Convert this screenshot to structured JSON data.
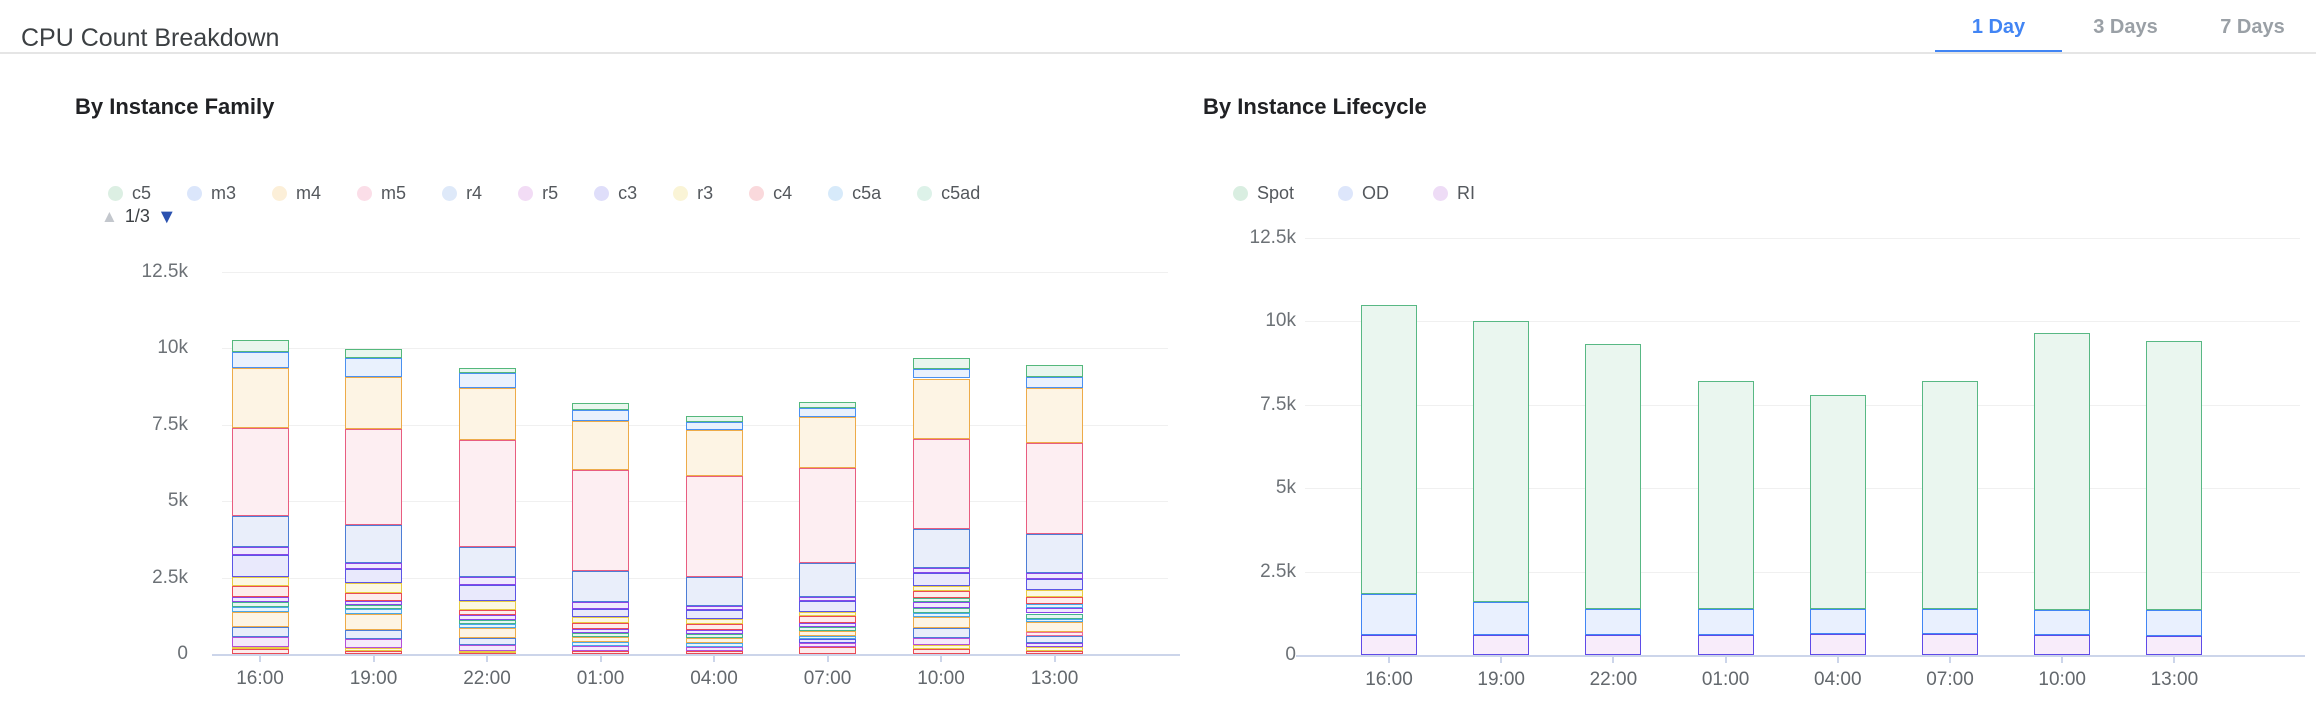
{
  "header": {
    "title": "CPU Count Breakdown",
    "tabs": [
      {
        "label": "1 Day",
        "active": true
      },
      {
        "label": "3 Days",
        "active": false
      },
      {
        "label": "7 Days",
        "active": false
      }
    ],
    "active_tab_color": "#4285f4"
  },
  "palette": {
    "green": {
      "stroke": "#54b87c",
      "fill": "#e9f6ee"
    },
    "blue": {
      "stroke": "#4a90f0",
      "fill": "#e9f1fd"
    },
    "amber": {
      "stroke": "#edab49",
      "fill": "#fdf4e4"
    },
    "rose": {
      "stroke": "#e85d80",
      "fill": "#fdeef2"
    },
    "steel": {
      "stroke": "#4d7dd6",
      "fill": "#e9eefa"
    },
    "violet": {
      "stroke": "#8a46e8",
      "fill": "#f1eafd"
    },
    "indigo": {
      "stroke": "#5c55e6",
      "fill": "#e9e9fc"
    },
    "yellow": {
      "stroke": "#e7cb43",
      "fill": "#fcf8e2"
    },
    "red": {
      "stroke": "#ea4b55",
      "fill": "#fdecec"
    },
    "teal": {
      "stroke": "#44b38c",
      "fill": "#e7f6f0"
    },
    "magenta": {
      "stroke": "#b44fd9",
      "fill": "#f5e9fb"
    },
    "sky": {
      "stroke": "#49a7e8",
      "fill": "#e8f4fd"
    },
    "pink": {
      "stroke": "#ee6c95",
      "fill": "#fdeef4"
    },
    "spot": {
      "stroke": "#58b884",
      "fill": "#eaf6ef"
    },
    "od": {
      "stroke": "#4285f4",
      "fill": "#e9f0fe"
    },
    "ri": {
      "stroke": "#5f4be8",
      "fill": "#f8ecfa"
    }
  },
  "chart_data": [
    {
      "id": "family",
      "type": "bar",
      "stacked": true,
      "title": "By Instance Family",
      "grid": true,
      "legend_position": "top-left",
      "legend": [
        {
          "label": "c5",
          "dot": "#dcefe3"
        },
        {
          "label": "m3",
          "dot": "#dbe6fb"
        },
        {
          "label": "m4",
          "dot": "#fcefd8"
        },
        {
          "label": "m5",
          "dot": "#fbdee8"
        },
        {
          "label": "r4",
          "dot": "#dee9f9"
        },
        {
          "label": "r5",
          "dot": "#f2dcf5"
        },
        {
          "label": "c3",
          "dot": "#dfdefa"
        },
        {
          "label": "r3",
          "dot": "#faf4d6"
        },
        {
          "label": "c4",
          "dot": "#fad9dc"
        },
        {
          "label": "c5a",
          "dot": "#d7eafa"
        },
        {
          "label": "c5ad",
          "dot": "#ddf2e9"
        }
      ],
      "pager": {
        "label": "1/3",
        "current": 1,
        "total": 3
      },
      "ylim": [
        0,
        12500
      ],
      "yticks": [
        {
          "v": 0,
          "label": "0"
        },
        {
          "v": 2500,
          "label": "2.5k"
        },
        {
          "v": 5000,
          "label": "5k"
        },
        {
          "v": 7500,
          "label": "7.5k"
        },
        {
          "v": 10000,
          "label": "10k"
        },
        {
          "v": 12500,
          "label": "12.5k"
        }
      ],
      "categories": [
        "16:00",
        "19:00",
        "22:00",
        "01:00",
        "04:00",
        "07:00",
        "10:00",
        "13:00"
      ],
      "bars": [
        {
          "category": "16:00",
          "total": 10280,
          "segments": [
            [
              "red",
              155
            ],
            [
              "yellow",
              85
            ],
            [
              "magenta",
              325
            ],
            [
              "steel",
              325
            ],
            [
              "amber",
              490
            ],
            [
              "sky",
              165
            ],
            [
              "teal",
              165
            ],
            [
              "violet",
              165
            ],
            [
              "red",
              350
            ],
            [
              "yellow",
              305
            ],
            [
              "indigo",
              710
            ],
            [
              "violet",
              270
            ],
            [
              "steel",
              1005
            ],
            [
              "rose",
              2870
            ],
            [
              "amber",
              1965
            ],
            [
              "blue",
              545
            ],
            [
              "green",
              385
            ]
          ]
        },
        {
          "category": "19:00",
          "total": 9995,
          "segments": [
            [
              "red",
              110
            ],
            [
              "yellow",
              75
            ],
            [
              "magenta",
              295
            ],
            [
              "steel",
              305
            ],
            [
              "amber",
              525
            ],
            [
              "sky",
              155
            ],
            [
              "teal",
              140
            ],
            [
              "violet",
              140
            ],
            [
              "red",
              240
            ],
            [
              "yellow",
              325
            ],
            [
              "indigo",
              460
            ],
            [
              "violet",
              195
            ],
            [
              "steel",
              1255
            ],
            [
              "rose",
              3130
            ],
            [
              "amber",
              1720
            ],
            [
              "blue",
              600
            ],
            [
              "green",
              325
            ]
          ]
        },
        {
          "category": "22:00",
          "total": 9365,
          "segments": [
            [
              "red",
              60
            ],
            [
              "yellow",
              40
            ],
            [
              "magenta",
              195
            ],
            [
              "steel",
              220
            ],
            [
              "amber",
              350
            ],
            [
              "sky",
              110
            ],
            [
              "teal",
              140
            ],
            [
              "violet",
              145
            ],
            [
              "red",
              185
            ],
            [
              "yellow",
              275
            ],
            [
              "indigo",
              525
            ],
            [
              "violet",
              260
            ],
            [
              "steel",
              980
            ],
            [
              "rose",
              3510
            ],
            [
              "amber",
              1715
            ],
            [
              "blue",
              490
            ],
            [
              "green",
              165
            ]
          ]
        },
        {
          "category": "01:00",
          "total": 8225,
          "segments": [
            [
              "red",
              110
            ],
            [
              "magenta",
              165
            ],
            [
              "sky",
              110
            ],
            [
              "amber",
              185
            ],
            [
              "teal",
              110
            ],
            [
              "violet",
              140
            ],
            [
              "red",
              185
            ],
            [
              "yellow",
              195
            ],
            [
              "indigo",
              260
            ],
            [
              "violet",
              230
            ],
            [
              "steel",
              1025
            ],
            [
              "rose",
              3305
            ],
            [
              "amber",
              1615
            ],
            [
              "blue",
              350
            ],
            [
              "green",
              240
            ]
          ]
        },
        {
          "category": "04:00",
          "total": 7785,
          "segments": [
            [
              "red",
              110
            ],
            [
              "magenta",
              130
            ],
            [
              "sky",
              110
            ],
            [
              "amber",
              165
            ],
            [
              "teal",
              140
            ],
            [
              "violet",
              130
            ],
            [
              "red",
              195
            ],
            [
              "yellow",
              155
            ],
            [
              "indigo",
              305
            ],
            [
              "violet",
              130
            ],
            [
              "steel",
              960
            ],
            [
              "rose",
              3305
            ],
            [
              "amber",
              1495
            ],
            [
              "blue",
              270
            ],
            [
              "green",
              185
            ]
          ]
        },
        {
          "category": "07:00",
          "total": 8255,
          "segments": [
            [
              "red",
              220
            ],
            [
              "magenta",
              130
            ],
            [
              "indigo",
              130
            ],
            [
              "sky",
              110
            ],
            [
              "amber",
              175
            ],
            [
              "teal",
              130
            ],
            [
              "violet",
              110
            ],
            [
              "red",
              240
            ],
            [
              "yellow",
              140
            ],
            [
              "indigo",
              360
            ],
            [
              "violet",
              130
            ],
            [
              "steel",
              1090
            ],
            [
              "rose",
              3110
            ],
            [
              "amber",
              1690
            ],
            [
              "blue",
              295
            ],
            [
              "green",
              195
            ]
          ]
        },
        {
          "category": "10:00",
          "total": 9670,
          "segments": [
            [
              "red",
              150
            ],
            [
              "yellow",
              140
            ],
            [
              "magenta",
              220
            ],
            [
              "steel",
              325
            ],
            [
              "amber",
              380
            ],
            [
              "sky",
              130
            ],
            [
              "teal",
              175
            ],
            [
              "violet",
              185
            ],
            [
              "teal",
              140
            ],
            [
              "red",
              220
            ],
            [
              "yellow",
              165
            ],
            [
              "indigo",
              405
            ],
            [
              "violet",
              195
            ],
            [
              "steel",
              1275
            ],
            [
              "rose",
              2945
            ],
            [
              "amber",
              1965
            ],
            [
              "blue",
              325
            ],
            [
              "green",
              330
            ]
          ]
        },
        {
          "category": "13:00",
          "total": 9455,
          "segments": [
            [
              "red",
              105
            ],
            [
              "yellow",
              110
            ],
            [
              "violet",
              130
            ],
            [
              "steel",
              240
            ],
            [
              "pink",
              140
            ],
            [
              "amber",
              325
            ],
            [
              "sky",
              110
            ],
            [
              "teal",
              165
            ],
            [
              "violet",
              165
            ],
            [
              "sky",
              140
            ],
            [
              "red",
              240
            ],
            [
              "yellow",
              240
            ],
            [
              "indigo",
              330
            ],
            [
              "violet",
              220
            ],
            [
              "steel",
              1265
            ],
            [
              "rose",
              2965
            ],
            [
              "amber",
              1830
            ],
            [
              "blue",
              350
            ],
            [
              "green",
              385
            ]
          ]
        }
      ]
    },
    {
      "id": "lifecycle",
      "type": "bar",
      "stacked": true,
      "title": "By Instance Lifecycle",
      "grid": true,
      "legend_position": "top-left",
      "legend": [
        {
          "label": "Spot",
          "dot": "#d9eee1"
        },
        {
          "label": "OD",
          "dot": "#dde6fb"
        },
        {
          "label": "RI",
          "dot": "#eedcf6"
        }
      ],
      "ylim": [
        0,
        12500
      ],
      "yticks": [
        {
          "v": 0,
          "label": "0"
        },
        {
          "v": 2500,
          "label": "2.5k"
        },
        {
          "v": 5000,
          "label": "5k"
        },
        {
          "v": 7500,
          "label": "7.5k"
        },
        {
          "v": 10000,
          "label": "10k"
        },
        {
          "v": 12500,
          "label": "12.5k"
        }
      ],
      "categories": [
        "16:00",
        "19:00",
        "22:00",
        "01:00",
        "04:00",
        "07:00",
        "10:00",
        "13:00"
      ],
      "series": [
        {
          "name": "RI",
          "color": "ri",
          "values": [
            600,
            600,
            600,
            600,
            620,
            620,
            600,
            580
          ]
        },
        {
          "name": "OD",
          "color": "od",
          "values": [
            1220,
            990,
            780,
            780,
            760,
            760,
            750,
            770
          ]
        },
        {
          "name": "Spot",
          "color": "spot",
          "values": [
            8680,
            8410,
            7940,
            6820,
            6420,
            6820,
            8300,
            8070
          ]
        }
      ],
      "totals": [
        10500,
        10000,
        9320,
        8200,
        7800,
        8200,
        9650,
        9420
      ]
    }
  ]
}
